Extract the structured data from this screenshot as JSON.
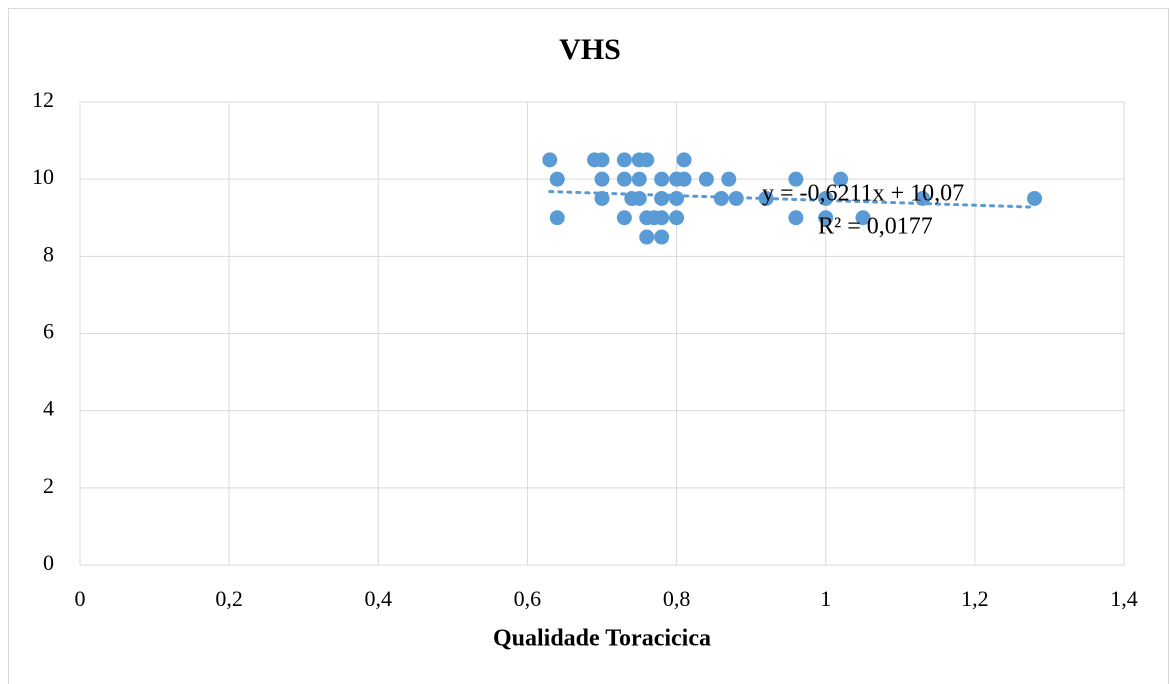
{
  "chart_data": {
    "type": "scatter",
    "title": "VHS",
    "x_label": "Qualidade Toracicica",
    "x": [
      0.63,
      0.64,
      0.64,
      0.69,
      0.7,
      0.7,
      0.7,
      0.73,
      0.73,
      0.73,
      0.74,
      0.75,
      0.75,
      0.75,
      0.76,
      0.76,
      0.76,
      0.77,
      0.78,
      0.78,
      0.78,
      0.78,
      0.8,
      0.8,
      0.8,
      0.81,
      0.81,
      0.84,
      0.86,
      0.87,
      0.88,
      0.92,
      0.96,
      0.96,
      1.0,
      1.0,
      1.02,
      1.05,
      1.13,
      1.28
    ],
    "values": [
      10.5,
      10,
      9,
      10.5,
      10.5,
      10,
      9.5,
      10.5,
      10,
      9,
      9.5,
      10.5,
      10,
      9.5,
      10.5,
      9,
      8.5,
      9,
      10,
      9.5,
      9,
      8.5,
      10,
      9.5,
      9,
      10.5,
      10,
      10,
      9.5,
      10,
      9.5,
      9.5,
      10,
      9,
      9.5,
      9,
      10,
      9,
      9.5,
      9.5
    ],
    "color": "#5b9bd5",
    "xlim": [
      0,
      1.4
    ],
    "xticks": [
      0,
      {
        "value": 0.2,
        "label": "0,2"
      },
      {
        "value": 0.4,
        "label": "0,4"
      },
      {
        "value": 0.6,
        "label": "0,6"
      },
      {
        "value": 0.8,
        "label": "0,8"
      },
      1,
      {
        "value": 1.2,
        "label": "1,2"
      },
      {
        "value": 1.4,
        "label": "1,4"
      }
    ],
    "ylim": [
      0,
      12
    ],
    "yticks": [
      0,
      2,
      4,
      6,
      8,
      10,
      12
    ],
    "grid": true,
    "trendline": {
      "slope": -0.6211,
      "intercept": 10.07,
      "equation": "y = -0,6211x + 10,07",
      "r2_label": "R² = 0,0177"
    }
  }
}
